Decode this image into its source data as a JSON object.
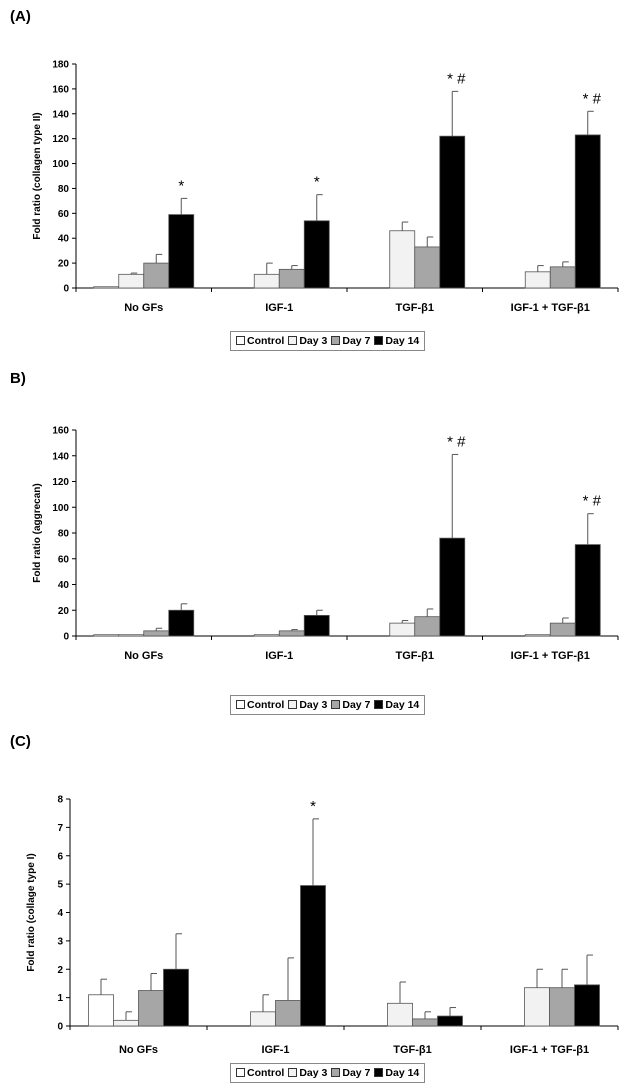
{
  "chart_data": [
    {
      "panel": "(A)",
      "type": "bar",
      "ylabel": "Fold ratio (collagen type II)",
      "ylim": [
        0,
        180
      ],
      "yticks": [
        0,
        20,
        40,
        60,
        80,
        100,
        120,
        140,
        160,
        180
      ],
      "categories": [
        "No GFs",
        "IGF-1",
        "TGF-β1",
        "IGF-1 + TGF-β1"
      ],
      "series": [
        {
          "name": "Control",
          "color": "#ffffff",
          "values": [
            1,
            null,
            null,
            null
          ],
          "errors": [
            0,
            null,
            null,
            null
          ]
        },
        {
          "name": "Day 3",
          "color": "#f2f2f2",
          "values": [
            11,
            11,
            46,
            13
          ],
          "errors": [
            1,
            9,
            7,
            5
          ]
        },
        {
          "name": "Day 7",
          "color": "#a6a6a6",
          "values": [
            20,
            15,
            33,
            17
          ],
          "errors": [
            7,
            3,
            8,
            4
          ]
        },
        {
          "name": "Day 14",
          "color": "#000000",
          "values": [
            59,
            54,
            122,
            123
          ],
          "errors": [
            13,
            21,
            36,
            19
          ]
        }
      ],
      "annotations": [
        {
          "category": "No GFs",
          "text": "*"
        },
        {
          "category": "IGF-1",
          "text": "*"
        },
        {
          "category": "TGF-β1",
          "text": "* #"
        },
        {
          "category": "IGF-1 + TGF-β1",
          "text": "* #"
        }
      ],
      "legend_position": "bottom-center"
    },
    {
      "panel": "B)",
      "type": "bar",
      "ylabel": "Fold ratio (aggrecan)",
      "ylim": [
        0,
        160
      ],
      "yticks": [
        0,
        20,
        40,
        60,
        80,
        100,
        120,
        140,
        160
      ],
      "categories": [
        "No GFs",
        "IGF-1",
        "TGF-β1",
        "IGF-1 + TGF-β1"
      ],
      "series": [
        {
          "name": "Control",
          "color": "#ffffff",
          "values": [
            1,
            null,
            null,
            null
          ],
          "errors": [
            0,
            null,
            null,
            null
          ]
        },
        {
          "name": "Day 3",
          "color": "#f2f2f2",
          "values": [
            1,
            1,
            10,
            1
          ],
          "errors": [
            0,
            0,
            2,
            0
          ]
        },
        {
          "name": "Day 7",
          "color": "#a6a6a6",
          "values": [
            4,
            4,
            15,
            10
          ],
          "errors": [
            2,
            1,
            6,
            4
          ]
        },
        {
          "name": "Day 14",
          "color": "#000000",
          "values": [
            20,
            16,
            76,
            71
          ],
          "errors": [
            5,
            4,
            65,
            24
          ]
        }
      ],
      "annotations": [
        {
          "category": "TGF-β1",
          "text": "* #"
        },
        {
          "category": "IGF-1 + TGF-β1",
          "text": "* #"
        }
      ],
      "legend_position": "bottom-center"
    },
    {
      "panel": "(C)",
      "type": "bar",
      "ylabel": "Fold ratio (collage type I)",
      "ylim": [
        0,
        8
      ],
      "yticks": [
        0,
        1,
        2,
        3,
        4,
        5,
        6,
        7,
        8
      ],
      "categories": [
        "No GFs",
        "IGF-1",
        "TGF-β1",
        "IGF-1 + TGF-β1"
      ],
      "series": [
        {
          "name": "Control",
          "color": "#ffffff",
          "values": [
            1.1,
            null,
            null,
            null
          ],
          "errors": [
            0.55,
            null,
            null,
            null
          ]
        },
        {
          "name": "Day 3",
          "color": "#f2f2f2",
          "values": [
            0.2,
            0.5,
            0.8,
            1.35
          ],
          "errors": [
            0.3,
            0.6,
            0.75,
            0.65
          ]
        },
        {
          "name": "Day 7",
          "color": "#a6a6a6",
          "values": [
            1.25,
            0.9,
            0.25,
            1.35
          ],
          "errors": [
            0.6,
            1.5,
            0.25,
            0.65
          ]
        },
        {
          "name": "Day 14",
          "color": "#000000",
          "values": [
            2.0,
            4.95,
            0.35,
            1.45
          ],
          "errors": [
            1.25,
            2.35,
            0.3,
            1.05
          ]
        }
      ],
      "annotations": [
        {
          "category": "IGF-1",
          "text": "*"
        }
      ],
      "legend_position": "bottom-center"
    }
  ]
}
